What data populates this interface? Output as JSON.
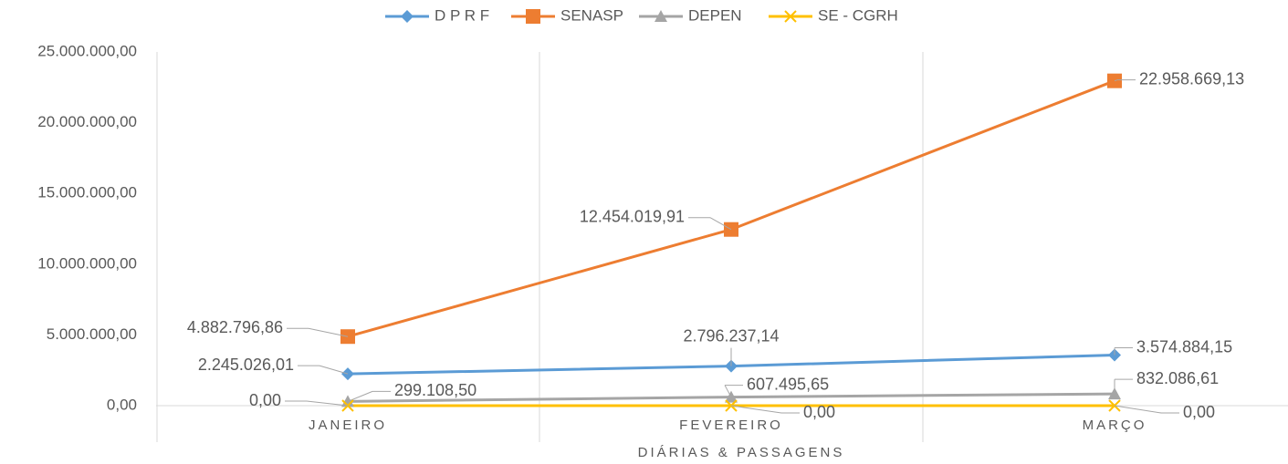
{
  "chart_data": {
    "type": "line",
    "x_label": "DIÁRIAS & PASSAGENS",
    "categories": [
      "JANEIRO",
      "FEVEREIRO",
      "MARÇO"
    ],
    "series": [
      {
        "name": "D P R F",
        "color": "#5b9bd5",
        "marker": "diamond",
        "values": [
          2245026.01,
          2796237.14,
          3574884.15
        ],
        "value_labels": [
          "2.245.026,01",
          "2.796.237,14",
          "3.574.884,15"
        ]
      },
      {
        "name": "SENASP",
        "color": "#ed7d31",
        "marker": "square",
        "values": [
          4882796.86,
          12454019.91,
          22958669.13
        ],
        "value_labels": [
          "4.882.796,86",
          "12.454.019,91",
          "22.958.669,13"
        ]
      },
      {
        "name": "DEPEN",
        "color": "#a5a5a5",
        "marker": "triangle",
        "values": [
          299108.5,
          607495.65,
          832086.61
        ],
        "value_labels": [
          "299.108,50",
          "607.495,65",
          "832.086,61"
        ]
      },
      {
        "name": "SE - CGRH",
        "color": "#ffc000",
        "marker": "x",
        "values": [
          0,
          0,
          0
        ],
        "value_labels": [
          "0,00",
          "0,00",
          "0,00"
        ]
      }
    ],
    "ylim": [
      0,
      25000000
    ],
    "yticks": [
      {
        "value": 0,
        "label": "0,00"
      },
      {
        "value": 5000000,
        "label": "5.000.000,00"
      },
      {
        "value": 10000000,
        "label": "10.000.000,00"
      },
      {
        "value": 15000000,
        "label": "15.000.000,00"
      },
      {
        "value": 20000000,
        "label": "20.000.000,00"
      },
      {
        "value": 25000000,
        "label": "25.000.000,00"
      }
    ],
    "grid": true,
    "legend": "top"
  }
}
